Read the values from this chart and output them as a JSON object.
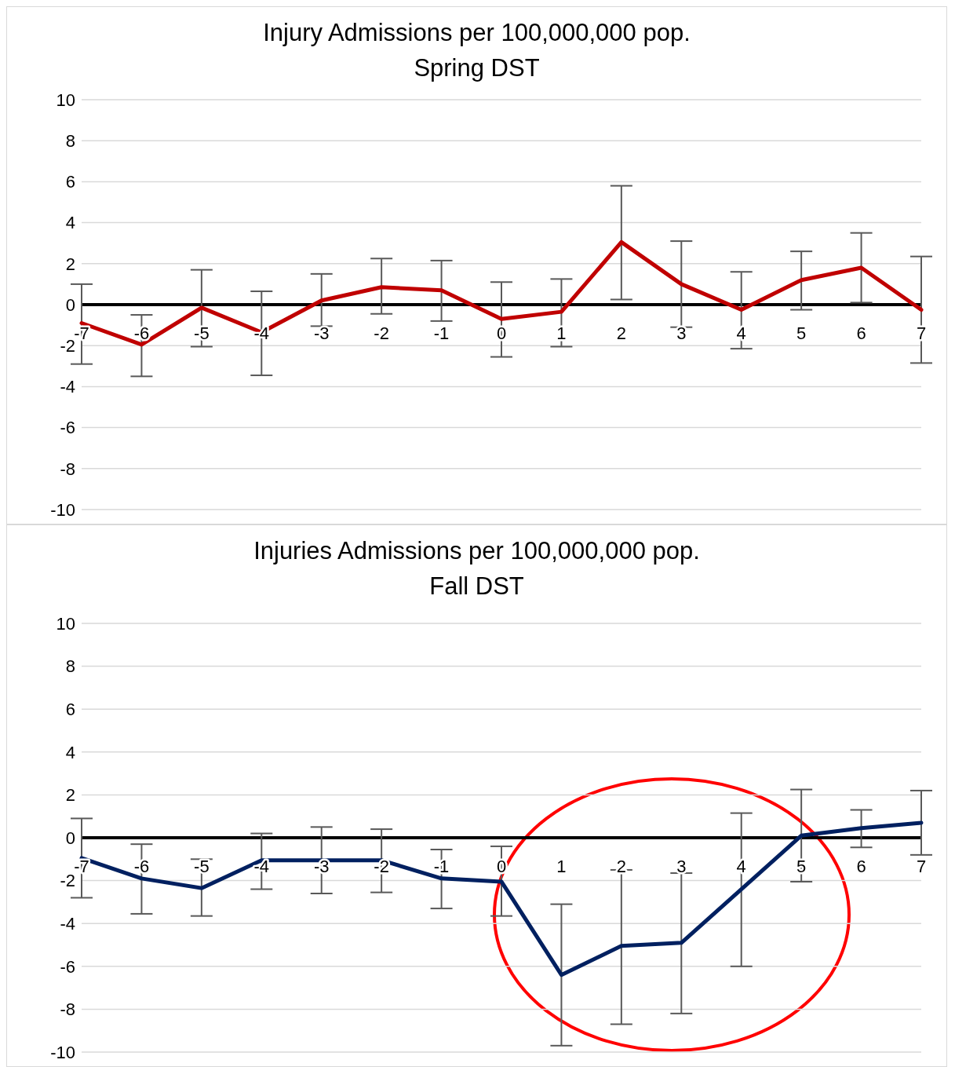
{
  "chart_data": [
    {
      "type": "line",
      "title": "Injury Admissions per 100,000,000 pop.",
      "subtitle": "Spring DST",
      "categories": [
        "-7",
        "-6",
        "-5",
        "-4",
        "-3",
        "-2",
        "-1",
        "0",
        "1",
        "2",
        "3",
        "4",
        "5",
        "6",
        "7"
      ],
      "series": [
        {
          "color": "#c00000",
          "values": [
            -0.9,
            -1.95,
            -0.15,
            -1.35,
            0.2,
            0.85,
            0.7,
            -0.7,
            -0.35,
            3.05,
            1.0,
            -0.25,
            1.2,
            1.8,
            -0.25
          ],
          "errors": [
            [
              -2.9,
              1.0
            ],
            [
              -3.5,
              -0.5
            ],
            [
              -2.05,
              1.7
            ],
            [
              -3.45,
              0.65
            ],
            [
              -1.05,
              1.5
            ],
            [
              -0.45,
              2.25
            ],
            [
              -0.8,
              2.15
            ],
            [
              -2.55,
              1.1
            ],
            [
              -2.05,
              1.25
            ],
            [
              0.25,
              5.8
            ],
            [
              -1.1,
              3.1
            ],
            [
              -2.15,
              1.6
            ],
            [
              -0.25,
              2.6
            ],
            [
              0.1,
              3.5
            ],
            [
              -2.85,
              2.35
            ]
          ]
        }
      ],
      "ylim": [
        -10,
        10
      ],
      "yticks": [
        -10,
        -8,
        -6,
        -4,
        -2,
        0,
        2,
        4,
        6,
        8,
        10
      ],
      "grid": "y",
      "marker": "none",
      "line_style": "solid"
    },
    {
      "type": "line",
      "title": "Injuries Admissions per 100,000,000 pop.",
      "subtitle": "Fall DST",
      "categories": [
        "-7",
        "-6",
        "-5",
        "-4",
        "-3",
        "-2",
        "-1",
        "0",
        "1",
        "2",
        "3",
        "4",
        "5",
        "6",
        "7"
      ],
      "series": [
        {
          "color": "#002060",
          "values": [
            -0.95,
            -1.9,
            -2.35,
            -1.05,
            -1.05,
            -1.05,
            -1.9,
            -2.05,
            -6.4,
            -5.05,
            -4.9,
            -2.4,
            0.1,
            0.45,
            0.7
          ],
          "errors": [
            [
              -2.8,
              0.9
            ],
            [
              -3.55,
              -0.3
            ],
            [
              -3.65,
              -1.0
            ],
            [
              -2.4,
              0.2
            ],
            [
              -2.6,
              0.5
            ],
            [
              -2.55,
              0.4
            ],
            [
              -3.3,
              -0.55
            ],
            [
              -3.65,
              -0.4
            ],
            [
              -9.7,
              -3.1
            ],
            [
              -8.7,
              -1.5
            ],
            [
              -8.2,
              -1.65
            ],
            [
              -6.0,
              1.15
            ],
            [
              -2.05,
              2.25
            ],
            [
              -0.45,
              1.3
            ],
            [
              -0.8,
              2.2
            ]
          ]
        }
      ],
      "ylim": [
        -10,
        10
      ],
      "yticks": [
        -10,
        -8,
        -6,
        -4,
        -2,
        0,
        2,
        4,
        6,
        8,
        10
      ],
      "grid": "y",
      "marker": "none",
      "line_style": "solid"
    }
  ]
}
